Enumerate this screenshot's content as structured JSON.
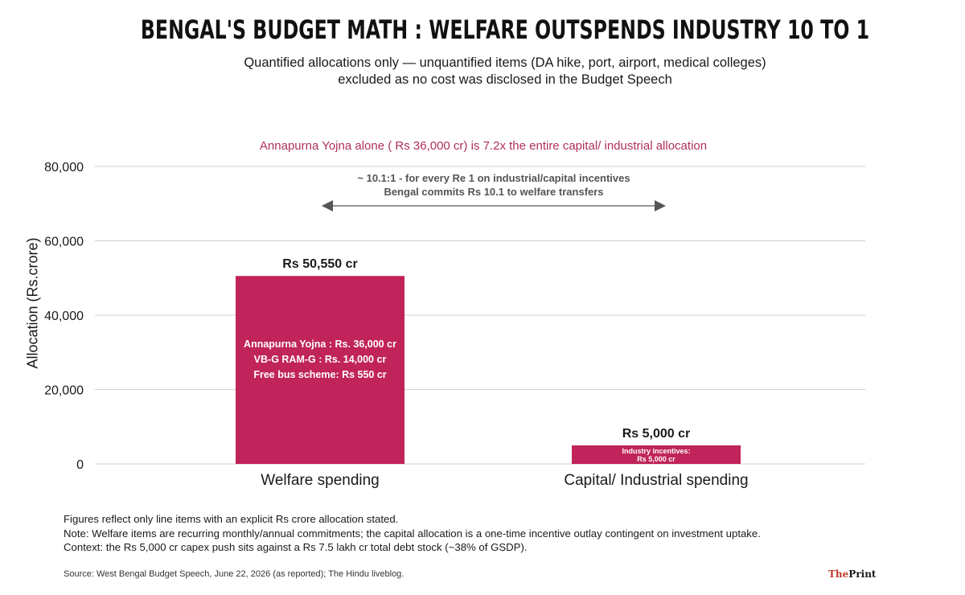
{
  "header": {
    "title": "Bengal's budget math : Welfare outspends industry 10 to 1",
    "subtitle_lines": [
      "Quantified allocations only — unquantified items (DA hike, port, airport, medical colleges)",
      "excluded as no cost was disclosed in the Budget Speech"
    ]
  },
  "chart_data": {
    "type": "bar",
    "title": "Bengal's budget math : Welfare outspends industry 10 to 1",
    "ylabel": "Allocation (Rs.crore)",
    "xlabel": "",
    "ylim": [
      0,
      80000
    ],
    "y_ticks": [
      0,
      20000,
      40000,
      60000,
      80000
    ],
    "y_tick_labels": [
      "0",
      "20,000",
      "40,000",
      "60,000",
      "80,000"
    ],
    "grid": true,
    "categories": [
      "Welfare spending",
      "Capital/ Industrial spending"
    ],
    "values": [
      50550,
      5000
    ],
    "value_labels": [
      "Rs 50,550 cr",
      "Rs 5,000 cr"
    ],
    "bar_color": "#c0245a",
    "bar_inner_labels": [
      [
        "Annapurna Yojna : Rs. 36,000 cr",
        "VB-G RAM-G : Rs. 14,000 cr",
        "Free bus scheme: Rs 550 cr"
      ],
      [
        "Industry incentives:",
        "Rs 5,000 cr"
      ]
    ],
    "annotation": "Annapurna Yojna alone ( Rs 36,000 cr) is 7.2x the entire capital/ industrial allocation",
    "ratio_note": [
      "~ 10.1:1 - for every Re 1 on industrial/capital incentives",
      "Bengal commits Rs 10.1 to welfare transfers"
    ]
  },
  "footer": {
    "notes": [
      "Figures reflect only line items with an explicit Rs crore allocation stated.",
      "Note: Welfare items are recurring monthly/annual commitments; the capital allocation is a one-time incentive outlay contingent on investment uptake.",
      "Context: the Rs 5,000 cr capex push sits against a Rs 7.5 lakh cr total debt stock (~38% of GSDP)."
    ],
    "source": "Source: West Bengal Budget Speech, June 22, 2026 (as reported); The Hindu liveblog.",
    "brand_the": "The",
    "brand_print": "Print"
  },
  "colors": {
    "accent": "#c0245a",
    "annotation": "#b0305a",
    "grid": "#cfcfcf",
    "arrow": "#555555"
  }
}
